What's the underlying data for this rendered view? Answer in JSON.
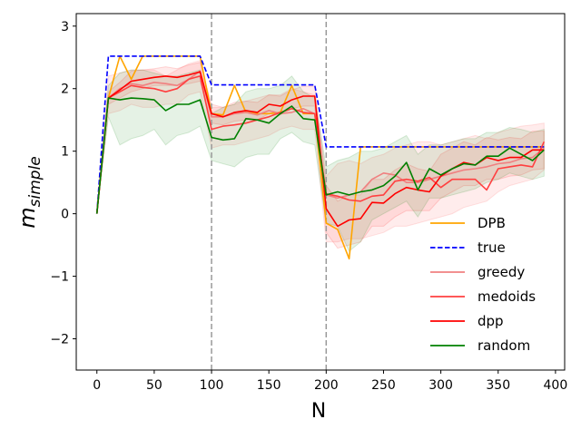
{
  "chart_data": {
    "type": "line",
    "title": "",
    "xlabel": "N",
    "ylabel_main": "m",
    "ylabel_sub": "simple",
    "xlim": [
      -18,
      408
    ],
    "ylim": [
      -2.5,
      3.2
    ],
    "xticks": [
      0,
      50,
      100,
      150,
      200,
      250,
      300,
      350,
      400
    ],
    "yticks": [
      -2,
      -1,
      0,
      1,
      2,
      3
    ],
    "vlines": [
      100,
      200
    ],
    "legend_position": "lower-right",
    "x": [
      0,
      10,
      20,
      30,
      40,
      50,
      60,
      70,
      80,
      90,
      100,
      110,
      120,
      130,
      140,
      150,
      160,
      170,
      180,
      190,
      200,
      210,
      220,
      230,
      240,
      250,
      260,
      270,
      280,
      290,
      300,
      310,
      320,
      330,
      340,
      350,
      360,
      370,
      380,
      390
    ],
    "series": [
      {
        "name": "DPB",
        "color": "#ffa500",
        "dash": "solid",
        "values": [
          0,
          1.85,
          2.52,
          2.15,
          2.52,
          2.52,
          2.52,
          2.52,
          2.52,
          2.52,
          1.6,
          1.58,
          2.05,
          1.62,
          1.6,
          1.6,
          1.62,
          2.05,
          1.6,
          1.6,
          -0.15,
          -0.25,
          -0.72,
          1.07,
          1.07,
          1.07,
          1.07,
          1.07,
          1.07,
          1.07,
          1.07,
          1.07,
          1.07,
          1.07,
          1.07,
          1.07,
          1.07,
          1.07,
          1.07,
          1.07
        ]
      },
      {
        "name": "true",
        "color": "#0000ff",
        "dash": "dashed",
        "values": [
          0,
          2.52,
          2.52,
          2.52,
          2.52,
          2.52,
          2.52,
          2.52,
          2.52,
          2.52,
          2.06,
          2.06,
          2.06,
          2.06,
          2.06,
          2.06,
          2.06,
          2.06,
          2.06,
          2.06,
          1.07,
          1.07,
          1.07,
          1.07,
          1.07,
          1.07,
          1.07,
          1.07,
          1.07,
          1.07,
          1.07,
          1.07,
          1.07,
          1.07,
          1.07,
          1.07,
          1.07,
          1.07,
          1.07,
          1.07
        ]
      },
      {
        "name": "greedy",
        "color": "#f08080",
        "dash": "solid",
        "values": [
          0,
          1.85,
          2.0,
          2.08,
          2.05,
          2.1,
          2.08,
          2.05,
          2.15,
          2.28,
          1.55,
          1.55,
          1.6,
          1.62,
          1.58,
          1.65,
          1.6,
          1.62,
          1.68,
          1.6,
          0.3,
          0.25,
          0.3,
          0.35,
          0.55,
          0.65,
          0.62,
          0.5,
          0.5,
          0.55,
          0.6,
          0.65,
          0.7,
          0.72,
          0.75,
          0.8,
          0.82,
          0.88,
          0.9,
          1.05
        ]
      },
      {
        "name": "medoids",
        "color": "#ff4040",
        "dash": "solid",
        "values": [
          0,
          1.85,
          1.95,
          2.05,
          2.02,
          2.0,
          1.95,
          2.0,
          2.15,
          2.2,
          1.35,
          1.4,
          1.42,
          1.45,
          1.5,
          1.55,
          1.62,
          1.68,
          1.62,
          1.6,
          0.32,
          0.28,
          0.22,
          0.2,
          0.28,
          0.3,
          0.52,
          0.55,
          0.52,
          0.58,
          0.42,
          0.55,
          0.55,
          0.55,
          0.38,
          0.72,
          0.75,
          0.78,
          0.75,
          1.15
        ]
      },
      {
        "name": "dpp",
        "color": "#ff0000",
        "dash": "solid",
        "values": [
          0,
          1.85,
          1.98,
          2.12,
          2.15,
          2.18,
          2.2,
          2.18,
          2.22,
          2.27,
          1.6,
          1.55,
          1.62,
          1.65,
          1.62,
          1.75,
          1.72,
          1.82,
          1.88,
          1.88,
          0.08,
          -0.2,
          -0.1,
          -0.08,
          0.18,
          0.17,
          0.32,
          0.42,
          0.38,
          0.35,
          0.6,
          0.72,
          0.82,
          0.78,
          0.9,
          0.85,
          0.9,
          0.9,
          1.02,
          1.02
        ]
      },
      {
        "name": "random",
        "color": "#008000",
        "dash": "solid",
        "values": [
          0,
          1.85,
          1.82,
          1.85,
          1.84,
          1.82,
          1.65,
          1.75,
          1.75,
          1.82,
          1.22,
          1.18,
          1.2,
          1.52,
          1.5,
          1.45,
          1.6,
          1.72,
          1.52,
          1.5,
          0.3,
          0.35,
          0.3,
          0.35,
          0.38,
          0.45,
          0.6,
          0.82,
          0.38,
          0.72,
          0.62,
          0.72,
          0.8,
          0.78,
          0.92,
          0.92,
          1.05,
          0.95,
          0.85,
          1.02
        ]
      }
    ],
    "bands": [
      {
        "series": "medoids",
        "color": "#ff4040",
        "opacity": 0.1,
        "lower": [
          0,
          1.6,
          1.65,
          1.75,
          1.7,
          1.7,
          1.75,
          1.75,
          1.9,
          1.95,
          1.05,
          1.1,
          1.1,
          1.15,
          1.2,
          1.25,
          1.35,
          1.4,
          1.35,
          1.35,
          -0.45,
          -0.45,
          -0.4,
          -0.4,
          -0.35,
          -0.3,
          -0.2,
          -0.2,
          -0.15,
          -0.1,
          -0.05,
          0.0,
          0.1,
          0.15,
          0.2,
          0.35,
          0.45,
          0.5,
          0.55,
          0.7
        ],
        "upper": [
          0,
          2.2,
          2.25,
          2.3,
          2.3,
          2.3,
          2.2,
          2.3,
          2.4,
          2.45,
          1.7,
          1.7,
          1.75,
          1.8,
          1.85,
          1.9,
          1.9,
          2.0,
          1.95,
          1.9,
          0.6,
          0.8,
          0.85,
          0.8,
          0.9,
          0.95,
          1.05,
          1.1,
          1.15,
          1.15,
          1.1,
          1.15,
          1.2,
          1.25,
          1.2,
          1.3,
          1.35,
          1.4,
          1.42,
          1.45
        ]
      },
      {
        "series": "dpp",
        "color": "#ff0000",
        "opacity": 0.08,
        "lower": [
          0,
          1.75,
          1.85,
          1.95,
          2.0,
          2.05,
          2.05,
          2.05,
          2.08,
          2.12,
          1.45,
          1.42,
          1.48,
          1.5,
          1.5,
          1.6,
          1.58,
          1.68,
          1.72,
          1.72,
          -0.3,
          -0.55,
          -0.5,
          -0.45,
          -0.2,
          -0.2,
          -0.05,
          0.05,
          0.05,
          0.05,
          0.25,
          0.35,
          0.45,
          0.45,
          0.55,
          0.55,
          0.6,
          0.62,
          0.7,
          0.72
        ],
        "upper": [
          0,
          1.95,
          2.1,
          2.28,
          2.3,
          2.32,
          2.35,
          2.32,
          2.38,
          2.42,
          1.75,
          1.7,
          1.78,
          1.8,
          1.78,
          1.9,
          1.88,
          1.98,
          2.04,
          2.04,
          0.45,
          0.2,
          0.3,
          0.3,
          0.55,
          0.55,
          0.7,
          0.8,
          0.72,
          0.68,
          0.95,
          1.05,
          1.15,
          1.1,
          1.22,
          1.18,
          1.22,
          1.2,
          1.32,
          1.32
        ]
      },
      {
        "series": "random",
        "color": "#008000",
        "opacity": 0.1,
        "lower": [
          0,
          1.55,
          1.1,
          1.2,
          1.25,
          1.35,
          1.1,
          1.25,
          1.3,
          1.4,
          0.85,
          0.8,
          0.75,
          0.9,
          0.95,
          0.95,
          1.2,
          1.3,
          1.15,
          1.1,
          -0.15,
          -0.2,
          -0.6,
          -0.45,
          -0.1,
          0.0,
          0.1,
          0.2,
          -0.05,
          0.25,
          0.25,
          0.3,
          0.35,
          0.4,
          0.5,
          0.55,
          0.65,
          0.6,
          0.55,
          0.6
        ],
        "upper": [
          0,
          2.05,
          2.25,
          2.3,
          2.3,
          2.25,
          2.2,
          2.2,
          2.25,
          2.3,
          1.6,
          1.7,
          1.75,
          1.95,
          2.0,
          2.0,
          2.05,
          2.2,
          1.95,
          1.85,
          0.75,
          0.85,
          0.9,
          1.0,
          1.0,
          1.05,
          1.15,
          1.25,
          0.95,
          1.1,
          1.1,
          1.15,
          1.2,
          1.2,
          1.3,
          1.3,
          1.38,
          1.35,
          1.3,
          1.35
        ]
      }
    ]
  }
}
